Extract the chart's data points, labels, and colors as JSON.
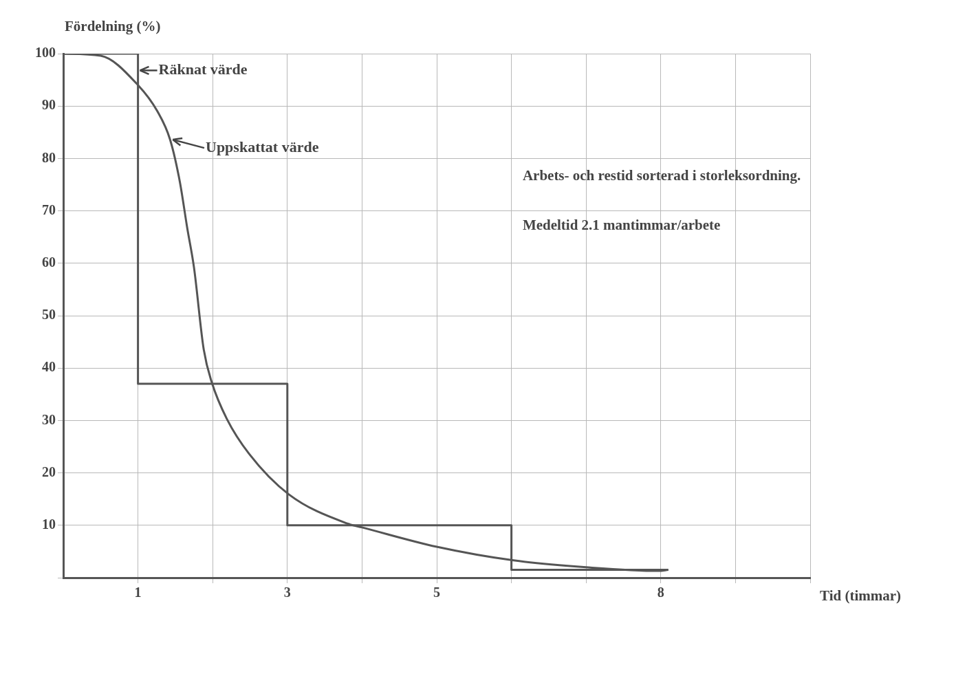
{
  "chart_data": {
    "type": "line",
    "ylabel": "Fördelning (%)",
    "xlabel": "Tid (timmar)",
    "xlim": [
      0,
      10
    ],
    "xticks": [
      {
        "value": 1,
        "label": "1"
      },
      {
        "value": 2,
        "label": null
      },
      {
        "value": 3,
        "label": "3"
      },
      {
        "value": 4,
        "label": null
      },
      {
        "value": 5,
        "label": "5"
      },
      {
        "value": 6,
        "label": null
      },
      {
        "value": 7,
        "label": null
      },
      {
        "value": 8,
        "label": "8"
      },
      {
        "value": 9,
        "label": null
      },
      {
        "value": 10,
        "label": null
      }
    ],
    "ylim": [
      0,
      100
    ],
    "yticks": [
      {
        "value": 0,
        "label": null
      },
      10,
      20,
      30,
      40,
      50,
      60,
      70,
      80,
      90,
      100
    ],
    "grid": true,
    "marker": "none",
    "line_style": "solid",
    "series": [
      {
        "name": "Räknat värde",
        "color": "#555555",
        "x": [
          0,
          1,
          1,
          3,
          3,
          6,
          6,
          8.1
        ],
        "values": [
          100,
          100,
          37,
          37,
          10,
          10,
          1.5,
          1.5
        ]
      },
      {
        "name": "Uppskattat värde",
        "color": "#555555",
        "x": [
          0,
          0.5,
          1,
          1.26,
          1.43,
          1.56,
          1.66,
          1.75,
          1.88,
          1.99,
          2.19,
          2.49,
          3.02,
          3.81,
          4,
          5,
          6.03,
          7,
          7.97,
          8.1
        ],
        "values": [
          100,
          99.6,
          94,
          89,
          83.6,
          75.6,
          66.7,
          59.2,
          43.6,
          37.2,
          30.3,
          23.6,
          15.9,
          10.3,
          9.6,
          5.9,
          3.3,
          2,
          1.3,
          1.5
        ]
      }
    ],
    "annotations": [
      "Arbets- och restid sorterad i storleksordning.",
      "Medeltid 2.1 mantimmar/arbete"
    ]
  }
}
